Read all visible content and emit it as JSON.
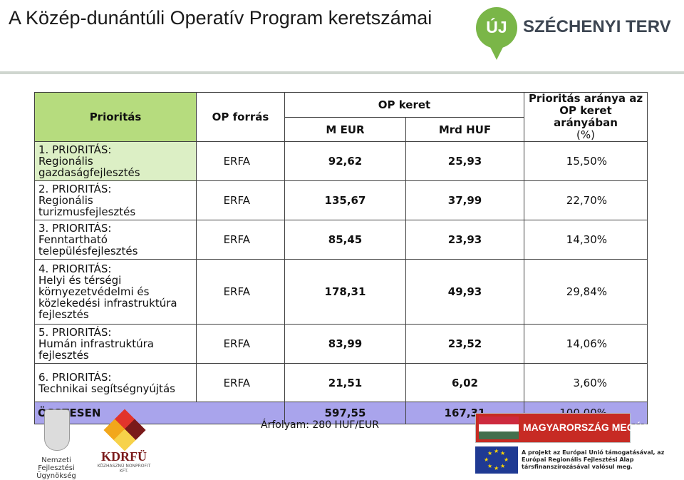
{
  "header": {
    "title": "A Közép-dunántúli Operatív Program keretszámai",
    "logo_badge": "ÚJ",
    "logo_brand": "SZÉCHENYI TERV"
  },
  "table": {
    "headers": {
      "priority": "Prioritás",
      "op_source": "OP forrás",
      "op_frame": "OP keret",
      "meur": "M EUR",
      "mrd_huf": "Mrd HUF",
      "share": "Prioritás aránya az OP keret arányában",
      "share_unit": "(%)"
    },
    "rows": [
      {
        "num": "1. PRIORITÁS:",
        "name": "Regionális gazdaságfejlesztés",
        "source": "ERFA",
        "meur": "92,62",
        "mrdhuf": "25,93",
        "share": "15,50%"
      },
      {
        "num": "2. PRIORITÁS:",
        "name": "Regionális turizmusfejlesztés",
        "source": "ERFA",
        "meur": "135,67",
        "mrdhuf": "37,99",
        "share": "22,70%"
      },
      {
        "num": "3. PRIORITÁS:",
        "name": "Fenntartható településfejlesztés",
        "source": "ERFA",
        "meur": "85,45",
        "mrdhuf": "23,93",
        "share": "14,30%"
      },
      {
        "num": "4. PRIORITÁS:",
        "name": "Helyi és térségi környezetvédelmi és közlekedési infrastruktúra fejlesztés",
        "source": "ERFA",
        "meur": "178,31",
        "mrdhuf": "49,93",
        "share": "29,84%"
      },
      {
        "num": "5. PRIORITÁS:",
        "name": "Humán infrastruktúra fejlesztés",
        "source": "ERFA",
        "meur": "83,99",
        "mrdhuf": "23,52",
        "share": "14,06%"
      },
      {
        "num": "6. PRIORITÁS:",
        "name": "Technikai segítségnyújtás",
        "source": "ERFA",
        "meur": "21,51",
        "mrdhuf": "6,02",
        "share": "3,60%"
      }
    ],
    "total": {
      "label": "ÖSSZESEN",
      "meur": "597,55",
      "mrdhuf": "167,31",
      "share": "100,00%"
    }
  },
  "footer": {
    "exchange_rate": "Árfolyam: 280 HUF/EUR",
    "fund_agency_line1": "Nemzeti",
    "fund_agency_line2": "Fejlesztési Ügynökség",
    "kdrfu_name": "KDRFÜ",
    "kdrfu_sub": "KÖZHASZNÚ NONPROFIT KFT.",
    "banner": "MAGYARORSZÁG MEGÚJUL",
    "eu_text": "A projekt az Európai Unió támogatásával, az Európai Regionális Fejlesztési Alap társfinanszírozásával valósul meg."
  },
  "colors": {
    "header_green": "#b6dc7e",
    "priority_green": "#dcefc5",
    "total_purple": "#a9a4ec",
    "brand_green": "#7ab648",
    "banner_red": "#c72b24",
    "eu_blue": "#1f3a93"
  }
}
